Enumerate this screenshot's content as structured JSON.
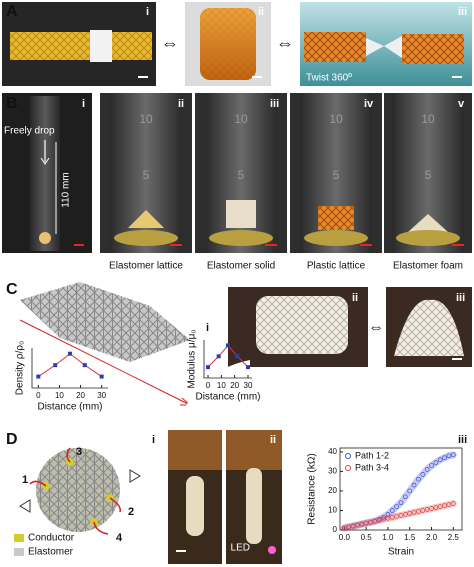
{
  "A": {
    "label": "A",
    "sub": [
      "i",
      "ii",
      "iii"
    ],
    "caption": "Twist 360º"
  },
  "B": {
    "label": "B",
    "sub": [
      "i",
      "ii",
      "iii",
      "iv",
      "v"
    ],
    "drop": "Freely drop",
    "height": "110 mm",
    "captions": [
      "Elastomer lattice",
      "Elastomer solid",
      "Plastic lattice",
      "Elastomer foam"
    ],
    "cylinder_marks": [
      "10",
      "5"
    ]
  },
  "C": {
    "label": "C",
    "sub": [
      "i",
      "ii",
      "iii"
    ]
  },
  "D": {
    "label": "D",
    "sub": [
      "i",
      "ii",
      "iii"
    ],
    "wires": [
      "1",
      "2",
      "3",
      "4"
    ],
    "legend": [
      "Conductor",
      "Elastomer"
    ],
    "led": "LED"
  },
  "chart_data": [
    {
      "type": "line",
      "y_label": "Density ρ/ρ₀",
      "x_label": "Distance (mm)",
      "x": [
        0,
        8,
        15,
        22,
        30
      ],
      "values": [
        1,
        2,
        3,
        2,
        1
      ],
      "line_color": "#e0303a",
      "marker_color": "#2a3fb0",
      "xlim": [
        -3,
        33
      ],
      "ylim": [
        0,
        3.5
      ],
      "xticks": [
        0,
        10,
        20,
        30
      ]
    },
    {
      "type": "line",
      "y_label": "Modulus μ/μ₀",
      "x_label": "Distance (mm)",
      "x": [
        0,
        8,
        15,
        22,
        30
      ],
      "values": [
        1,
        2,
        3,
        2,
        1
      ],
      "line_color": "#e0303a",
      "marker_color": "#2a3fb0",
      "xlim": [
        -3,
        33
      ],
      "ylim": [
        0,
        3.5
      ],
      "xticks": [
        0,
        10,
        20,
        30
      ]
    },
    {
      "type": "scatter",
      "y_label": "Resistance (kΩ)",
      "x_label": "Strain",
      "legend": "upper left",
      "x": [
        0,
        0.1,
        0.2,
        0.3,
        0.4,
        0.5,
        0.6,
        0.7,
        0.8,
        0.9,
        1.0,
        1.1,
        1.2,
        1.3,
        1.4,
        1.5,
        1.6,
        1.7,
        1.8,
        1.9,
        2.0,
        2.1,
        2.2,
        2.3,
        2.4,
        2.5
      ],
      "series": [
        {
          "name": "Path 1-2",
          "color": "#3a4fd8",
          "values": [
            1,
            1.5,
            2,
            2.5,
            3,
            3.5,
            4,
            4.5,
            5.5,
            6.5,
            8,
            10,
            12,
            14,
            17,
            20,
            23,
            26,
            28.5,
            31,
            33,
            34.5,
            36,
            37,
            38,
            38.5
          ]
        },
        {
          "name": "Path 3-4",
          "color": "#e04040",
          "values": [
            1,
            1.5,
            2,
            2.5,
            3,
            3.5,
            4,
            4.5,
            5,
            5.5,
            6,
            6.5,
            7,
            7.5,
            8,
            8.5,
            9,
            9.5,
            10,
            10.5,
            11,
            11.5,
            12,
            12.5,
            13,
            13.5
          ]
        }
      ],
      "xlim": [
        -0.1,
        2.7
      ],
      "ylim": [
        0,
        42
      ],
      "xticks": [
        {
          "value": 0,
          "label": "0.0"
        },
        0.5,
        {
          "value": 1,
          "label": "1.0"
        },
        1.5,
        {
          "value": 2,
          "label": "2.0"
        },
        2.5
      ],
      "yticks": [
        0,
        10,
        20,
        30,
        40
      ]
    }
  ]
}
